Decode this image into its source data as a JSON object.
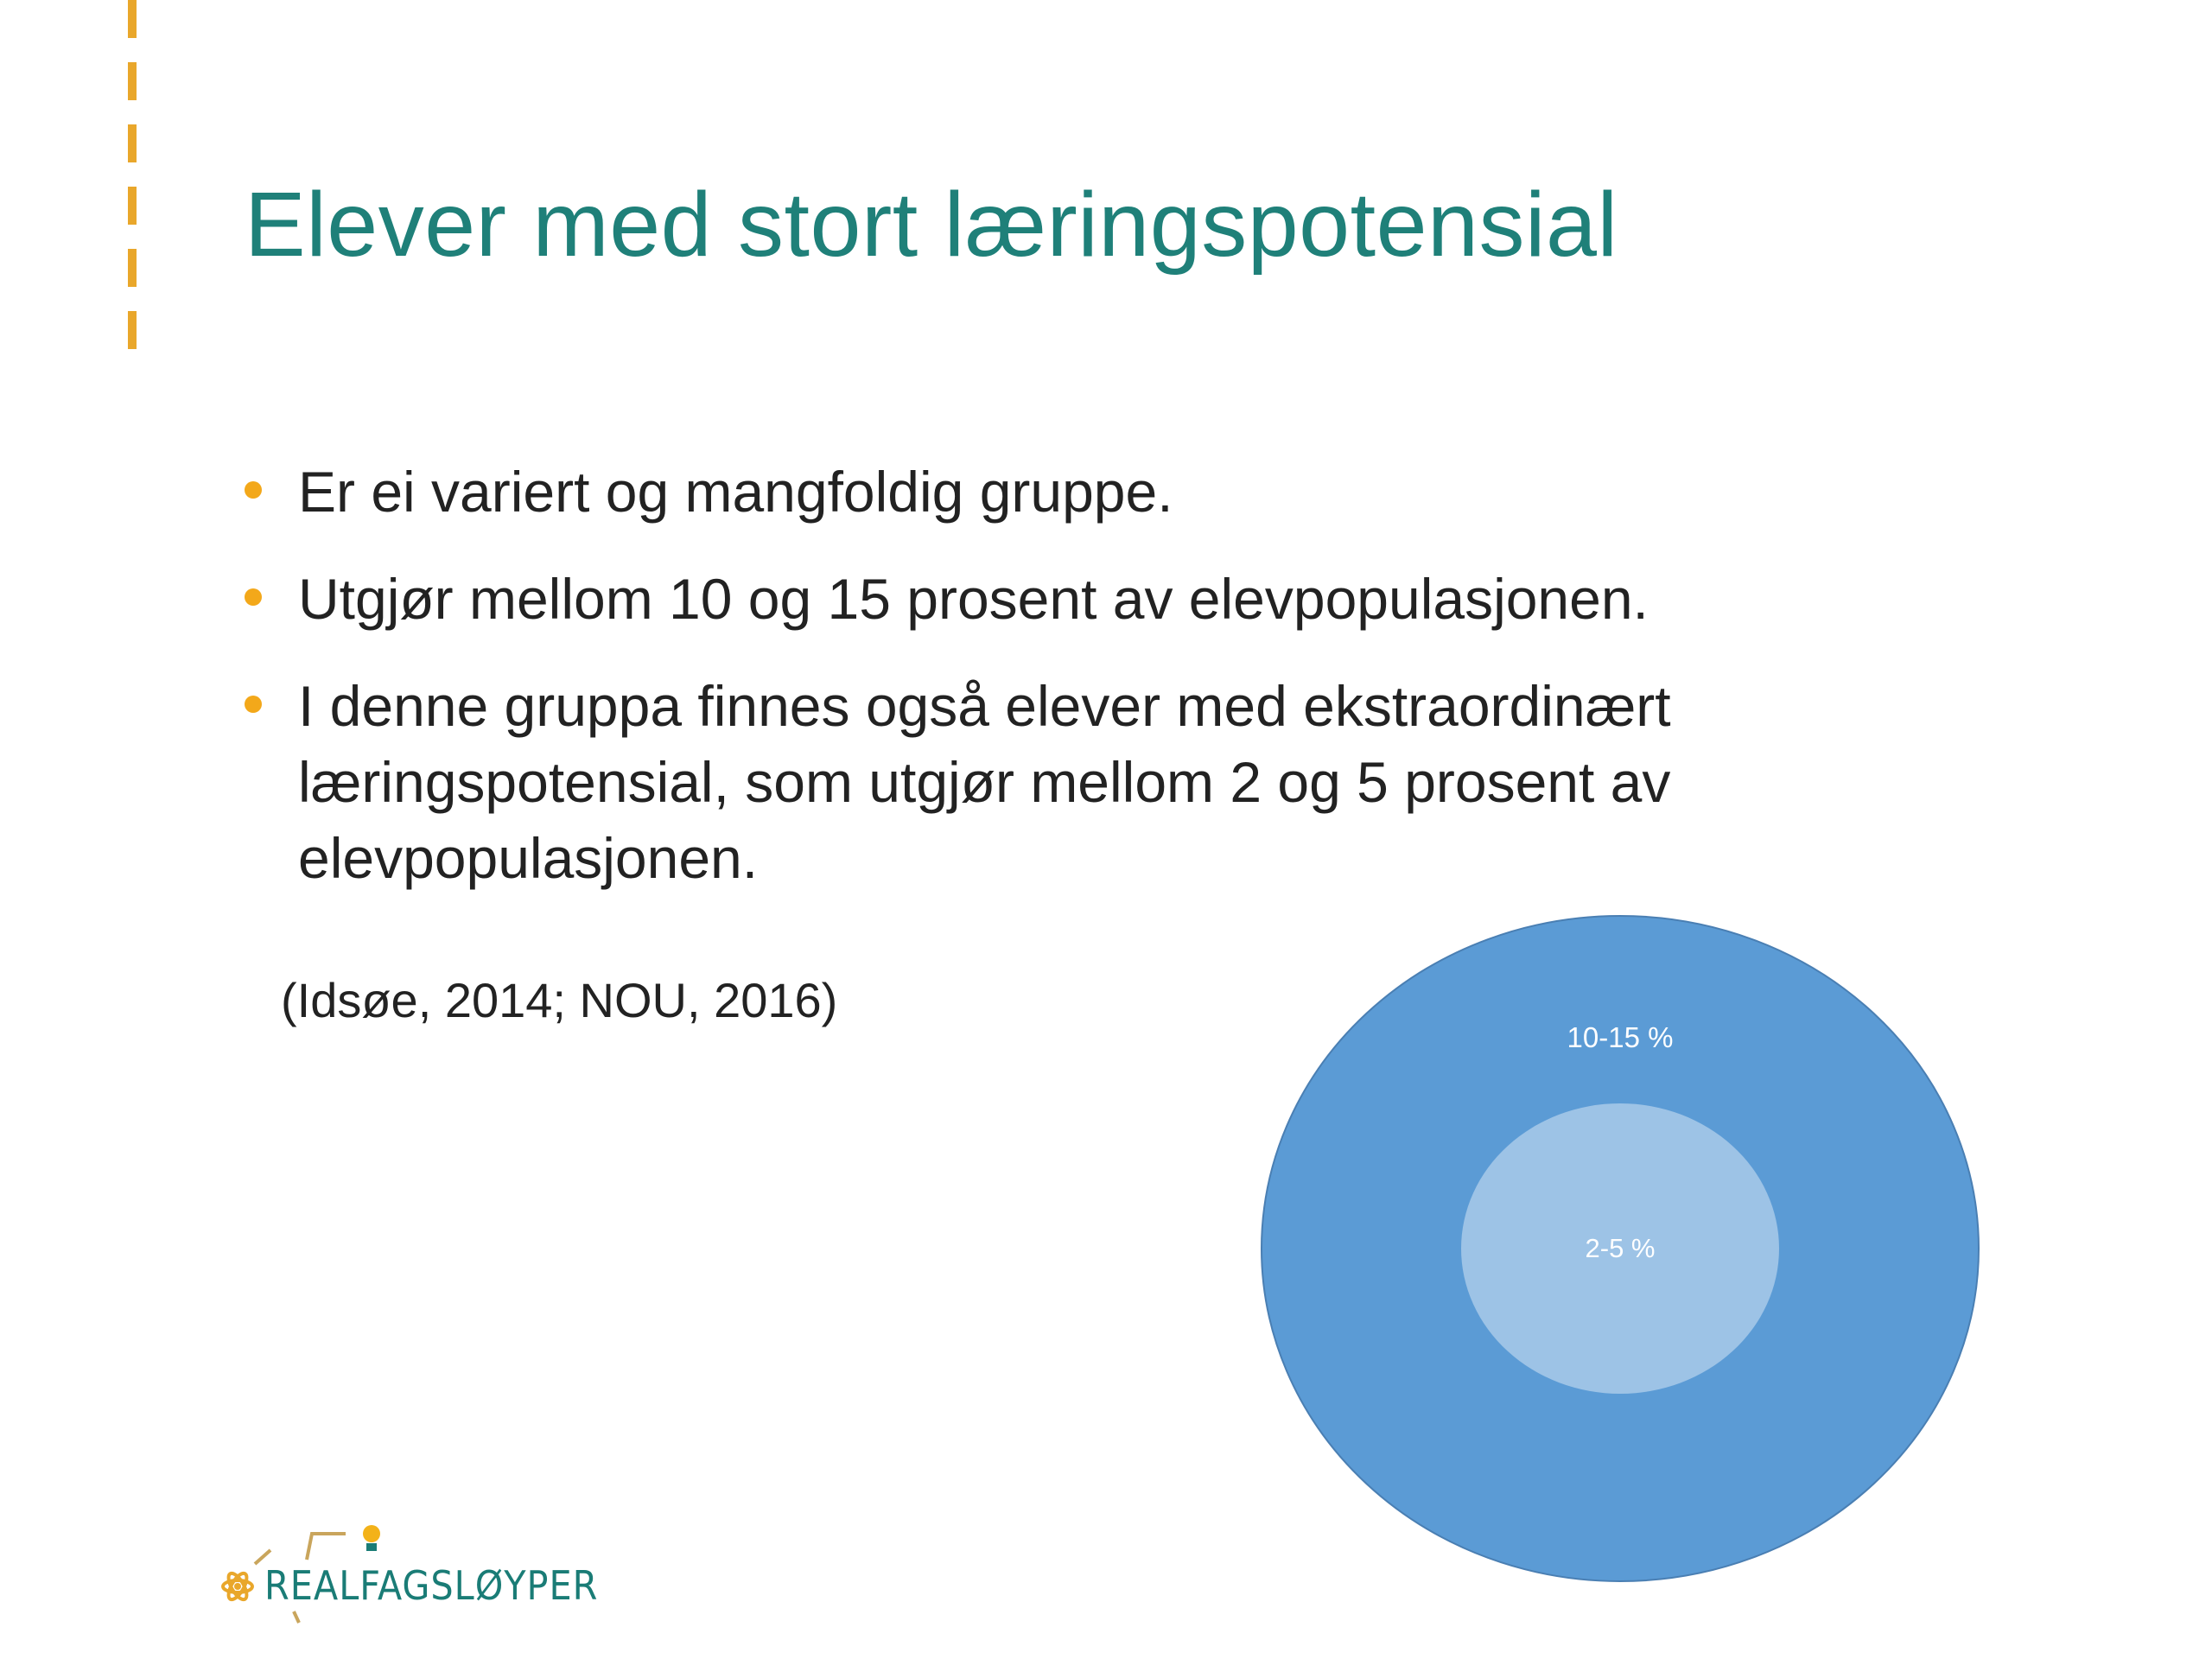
{
  "slide": {
    "title": "Elever med stort læringspotensial",
    "bullets": [
      "Er ei variert og mangfoldig gruppe.",
      "Utgjør mellom 10 og 15 prosent av elevpopulasjonen.",
      "I denne gruppa finnes også elever med ekstraordinært læringspotensial, som utgjør mellom 2 og 5 prosent av elevpopulasjonen."
    ],
    "citation": "(Idsøe, 2014;  NOU, 2016)"
  },
  "diagram": {
    "outer_label": "10-15 %",
    "inner_label": "2-5 %",
    "outer_color": "#5B9BD5",
    "inner_color": "#9DC3E6"
  },
  "logo": {
    "text": "REALFAGSLØYPER",
    "text_color": "#1A7C76",
    "accent_color": "#E9A72B"
  },
  "colors": {
    "title": "#1F8079",
    "bullet": "#F3A81A",
    "accent_bar": "#E9A72B"
  }
}
